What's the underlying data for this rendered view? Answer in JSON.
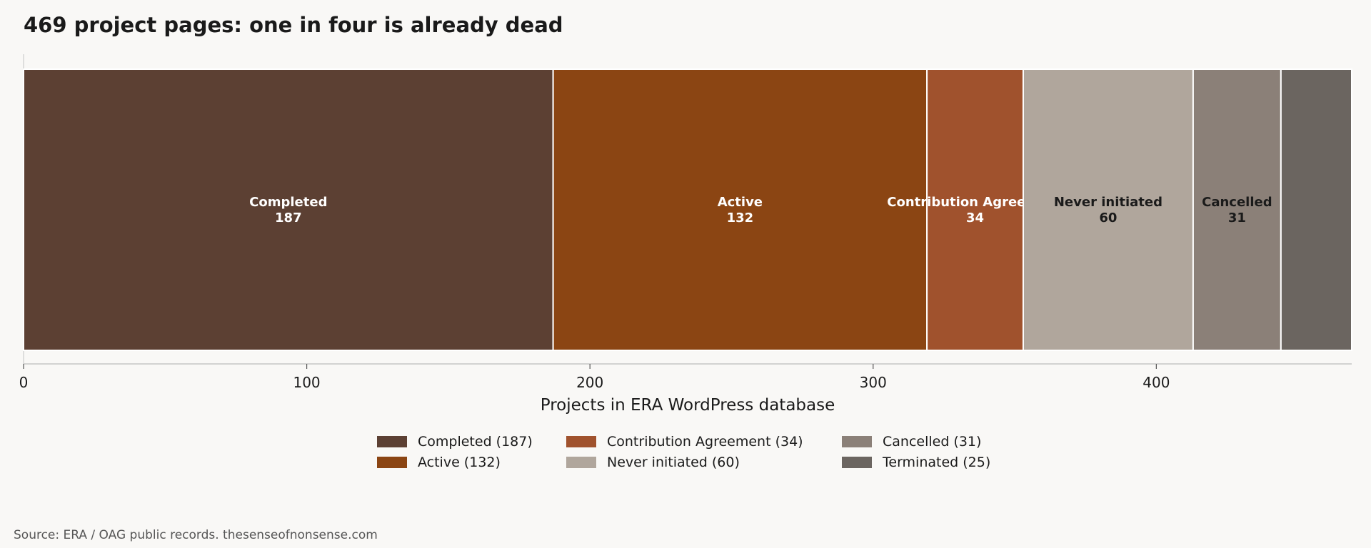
{
  "chart_data": {
    "type": "bar",
    "orientation": "horizontal-stacked",
    "title": "469 project pages: one in four is already dead",
    "xlabel": "Projects in ERA WordPress database",
    "ylabel": "",
    "xlim": [
      0,
      469
    ],
    "xticks": [
      0,
      100,
      200,
      300,
      400
    ],
    "xtick_labels": [
      "0",
      "100",
      "200",
      "300",
      "400"
    ],
    "grid": false,
    "legend_position": "bottom",
    "segments": [
      {
        "name": "Completed",
        "value": 187,
        "color": "#5c4033",
        "label_color": "#ffffff",
        "legend": "Completed (187)",
        "show_label": true
      },
      {
        "name": "Active",
        "value": 132,
        "color": "#8b4513",
        "label_color": "#ffffff",
        "legend": "Active (132)",
        "show_label": true
      },
      {
        "name": "Contribution Agreement",
        "value": 34,
        "color": "#a0522d",
        "label_color": "#ffffff",
        "legend": "Contribution Agreement (34)",
        "show_label": true
      },
      {
        "name": "Never initiated",
        "value": 60,
        "color": "#b0a69c",
        "label_color": "#1a1a1a",
        "legend": "Never initiated (60)",
        "show_label": true
      },
      {
        "name": "Cancelled",
        "value": 31,
        "color": "#8b8078",
        "label_color": "#1a1a1a",
        "legend": "Cancelled (31)",
        "show_label": true
      },
      {
        "name": "Terminated",
        "value": 25,
        "color": "#6b6560",
        "label_color": "#1a1a1a",
        "legend": "Terminated (25)",
        "show_label": false
      }
    ]
  },
  "source_note": "Source: ERA / OAG public records. thesenseofnonsense.com"
}
